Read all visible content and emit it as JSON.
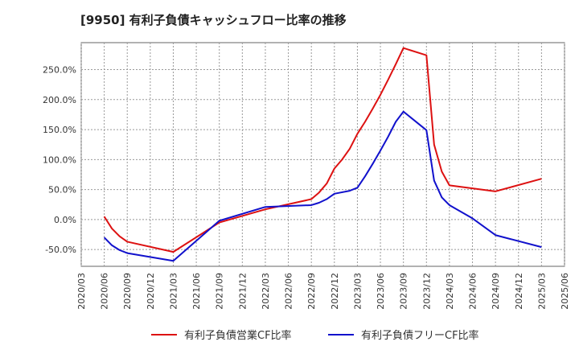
{
  "chart_data": {
    "type": "line",
    "title": "[9950]  有利子負債キャッシュフロー比率の推移",
    "xlabel": "",
    "ylabel": "",
    "x_ticks": [
      "2020/03",
      "2020/06",
      "2020/09",
      "2020/12",
      "2021/03",
      "2021/06",
      "2021/09",
      "2021/12",
      "2022/03",
      "2022/06",
      "2022/09",
      "2022/12",
      "2023/03",
      "2023/06",
      "2023/09",
      "2023/12",
      "2024/03",
      "2024/06",
      "2024/09",
      "2024/12",
      "2025/03",
      "2025/06"
    ],
    "y_ticks": [
      {
        "value": -50,
        "label": "-50.0%"
      },
      {
        "value": 0,
        "label": "0.0%"
      },
      {
        "value": 50,
        "label": "50.0%"
      },
      {
        "value": 100,
        "label": "100.0%"
      },
      {
        "value": 150,
        "label": "150.0%"
      },
      {
        "value": 200,
        "label": "200.0%"
      },
      {
        "value": 250,
        "label": "250.0%"
      }
    ],
    "ylim": [
      -78,
      295
    ],
    "xlim": [
      "2020/03",
      "2025/06"
    ],
    "grid": true,
    "legend_position": "bottom",
    "series": [
      {
        "name": "有利子負債営業CF比率",
        "color": "#dd1111",
        "points": [
          [
            "2020/06",
            5
          ],
          [
            "2020/07",
            -15
          ],
          [
            "2020/08",
            -28
          ],
          [
            "2020/09",
            -37
          ],
          [
            "2021/03",
            -54
          ],
          [
            "2021/09",
            -5
          ],
          [
            "2022/03",
            17
          ],
          [
            "2022/09",
            34
          ],
          [
            "2022/10",
            45
          ],
          [
            "2022/11",
            60
          ],
          [
            "2022/12",
            85
          ],
          [
            "2023/01",
            100
          ],
          [
            "2023/02",
            118
          ],
          [
            "2023/03",
            143
          ],
          [
            "2023/04",
            163
          ],
          [
            "2023/05",
            185
          ],
          [
            "2023/06",
            208
          ],
          [
            "2023/07",
            233
          ],
          [
            "2023/08",
            259
          ],
          [
            "2023/09",
            286
          ],
          [
            "2023/12",
            274
          ],
          [
            "2024/01",
            125
          ],
          [
            "2024/02",
            80
          ],
          [
            "2024/03",
            57
          ],
          [
            "2024/09",
            47
          ],
          [
            "2025/03",
            68
          ]
        ]
      },
      {
        "name": "有利子負債フリーCF比率",
        "color": "#1111cc",
        "points": [
          [
            "2020/06",
            -30
          ],
          [
            "2020/07",
            -43
          ],
          [
            "2020/08",
            -51
          ],
          [
            "2020/09",
            -56
          ],
          [
            "2021/03",
            -69
          ],
          [
            "2021/09",
            -2
          ],
          [
            "2022/03",
            21
          ],
          [
            "2022/09",
            24
          ],
          [
            "2022/10",
            28
          ],
          [
            "2022/11",
            34
          ],
          [
            "2022/12",
            43
          ],
          [
            "2023/02",
            48
          ],
          [
            "2023/03",
            53
          ],
          [
            "2023/04",
            72
          ],
          [
            "2023/05",
            93
          ],
          [
            "2023/06",
            115
          ],
          [
            "2023/07",
            138
          ],
          [
            "2023/08",
            163
          ],
          [
            "2023/09",
            180
          ],
          [
            "2023/12",
            149
          ],
          [
            "2024/01",
            65
          ],
          [
            "2024/02",
            37
          ],
          [
            "2024/03",
            24
          ],
          [
            "2024/06",
            2
          ],
          [
            "2024/09",
            -26
          ],
          [
            "2025/03",
            -46
          ]
        ]
      }
    ]
  }
}
